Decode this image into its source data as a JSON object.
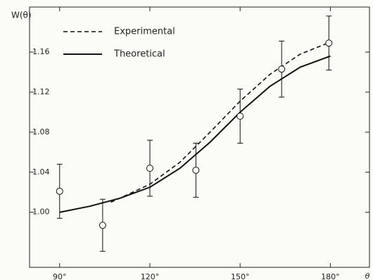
{
  "chart_data": {
    "type": "line",
    "ylabel": "W(θ)",
    "xlabel": "θ",
    "xlim": [
      80,
      193
    ],
    "ylim": [
      0.945,
      1.205
    ],
    "xticks": [
      {
        "value": 90,
        "label": "90°"
      },
      {
        "value": 120,
        "label": "120°"
      },
      {
        "value": 150,
        "label": "150°"
      },
      {
        "value": 180,
        "label": "180°"
      }
    ],
    "yticks": [
      {
        "value": 1.0,
        "label": "1.00"
      },
      {
        "value": 1.04,
        "label": "1.04"
      },
      {
        "value": 1.08,
        "label": "1.08"
      },
      {
        "value": 1.12,
        "label": "1.12"
      },
      {
        "value": 1.16,
        "label": "1.16"
      }
    ],
    "grid": false,
    "legend": "upper left",
    "series": [
      {
        "name": "Experimental",
        "color": "#111111",
        "dash": "dashed",
        "x": [
          107,
          110,
          120,
          130,
          140,
          150,
          160,
          170,
          180
        ],
        "values": [
          1.01,
          1.014,
          1.028,
          1.05,
          1.08,
          1.111,
          1.138,
          1.158,
          1.17
        ]
      },
      {
        "name": "Theoretical",
        "color": "#111111",
        "dash": "solid",
        "x": [
          90,
          100,
          110,
          120,
          130,
          140,
          150,
          160,
          170,
          180
        ],
        "values": [
          1.0,
          1.006,
          1.014,
          1.025,
          1.044,
          1.07,
          1.1,
          1.126,
          1.145,
          1.156
        ]
      }
    ],
    "data_points": {
      "color": "#111111",
      "x": [
        90,
        104.3,
        120,
        135.3,
        150,
        163.8,
        179.5
      ],
      "values": [
        1.021,
        0.987,
        1.044,
        1.042,
        1.096,
        1.143,
        1.169
      ],
      "errors": [
        0.027,
        0.026,
        0.028,
        0.027,
        0.027,
        0.028,
        0.027
      ]
    }
  }
}
